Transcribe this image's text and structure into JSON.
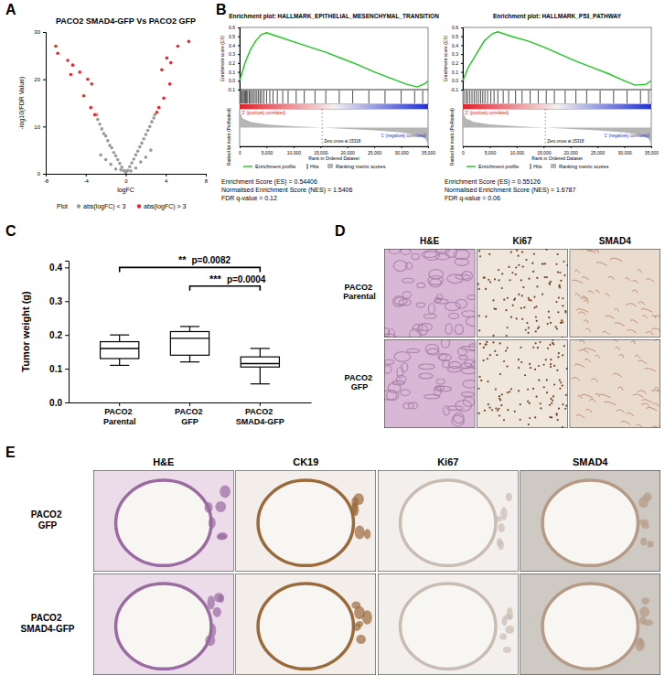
{
  "panel_labels": [
    "A",
    "B",
    "C",
    "D",
    "E"
  ],
  "chart_data": [
    {
      "type": "scatter",
      "title": "PACO2 SMAD4-GFP Vs PACO2 GFP",
      "x_label": "logFC",
      "y_label": "-log10(FDR Value)",
      "legend_title": "Plot",
      "xlim": [
        -8,
        8
      ],
      "xticks": [
        -8,
        -4,
        0,
        4,
        8
      ],
      "ylim": [
        0,
        30
      ],
      "yticks": [
        0,
        10,
        20,
        30
      ],
      "series": [
        {
          "name": "abs(logFC) < 3",
          "color": "#9a9a9a",
          "x": [
            -2.9,
            -2.8,
            -2.6,
            -2.4,
            -2.2,
            -2.0,
            -1.8,
            -1.6,
            -1.4,
            -1.2,
            -1.0,
            -0.8,
            -0.6,
            -0.4,
            -0.2,
            0,
            0.2,
            0.4,
            0.6,
            0.8,
            1.0,
            1.2,
            1.4,
            1.6,
            1.8,
            2.0,
            2.2,
            2.4,
            2.6,
            2.8,
            2.9,
            -2.5,
            -2.0,
            -1.5,
            -1.0,
            -0.5,
            0,
            0.5,
            1.0,
            1.5,
            2.0,
            2.5
          ],
          "values": [
            12.5,
            11.5,
            10.5,
            9.5,
            8.5,
            8,
            7,
            6,
            5.5,
            4.5,
            3.8,
            3,
            2.2,
            1.4,
            0.7,
            0.1,
            0.7,
            1.5,
            2.3,
            3.1,
            4,
            4.8,
            5.7,
            6.5,
            7.4,
            8.3,
            9.2,
            10,
            11,
            11.8,
            12.5,
            4,
            3,
            2,
            1,
            0.8,
            0.5,
            0.6,
            1.2,
            2.5,
            3.5,
            5
          ]
        },
        {
          "name": "abs(logFC) > 3",
          "color": "#e8292f",
          "x": [
            -7.0,
            -6.8,
            -5.8,
            -5.5,
            -5.3,
            -4.6,
            -4.2,
            -3.8,
            -3.5,
            -3.4,
            -3.1,
            3.1,
            3.3,
            3.6,
            3.8,
            4.1,
            4.4,
            4.5,
            5.2,
            6.3
          ],
          "values": [
            27,
            25.5,
            24,
            21,
            23,
            21.5,
            16.5,
            20,
            14,
            19,
            12.5,
            13,
            14,
            22,
            16,
            24.5,
            19,
            23.5,
            27,
            28
          ]
        }
      ]
    },
    {
      "type": "gsea",
      "title": "Enrichment plot: HALLMARK_EPITHELIAL_MESENCHYMAL_TRANSITION",
      "y_label": "Enrichment score (ES)",
      "x_label": "Rank in Ordered Dataset",
      "metric_label": "Ranked list metric (PreRanked)",
      "xlim": [
        0,
        35000
      ],
      "xticks": [
        0,
        {
          "value": 5000,
          "label": "5,000"
        },
        {
          "value": 10000,
          "label": "10,000"
        },
        {
          "value": 15000,
          "label": "15,000"
        },
        {
          "value": 20000,
          "label": "20,000"
        },
        {
          "value": 25000,
          "label": "25,000"
        },
        {
          "value": 30000,
          "label": "30,000"
        },
        {
          "value": 35000,
          "label": "35,000"
        }
      ],
      "ylim": [
        -0.1,
        0.6
      ],
      "yticks": [
        -0.1,
        {
          "value": 0,
          "label": "0.0"
        },
        0.1,
        0.2,
        0.3,
        0.4,
        0.5,
        0.6
      ],
      "series": [
        {
          "name": "Enrichment profile",
          "color": "#22c322",
          "x": [
            0,
            1000,
            2000,
            3000,
            4000,
            5000,
            7000,
            10000,
            13000,
            16000,
            19000,
            22000,
            25000,
            28000,
            31000,
            33000,
            34500,
            35000
          ],
          "values": [
            0,
            0.2,
            0.35,
            0.45,
            0.52,
            0.54,
            0.5,
            0.44,
            0.38,
            0.32,
            0.25,
            0.18,
            0.1,
            0.03,
            -0.04,
            -0.07,
            -0.03,
            0
          ]
        }
      ],
      "hits": {
        "name": "Hits",
        "x": [
          150,
          300,
          500,
          700,
          900,
          1100,
          1300,
          1500,
          1800,
          2000,
          2300,
          2600,
          2900,
          3200,
          3500,
          3800,
          4100,
          4500,
          5000,
          5600,
          6200,
          7000,
          8000,
          9000,
          10500,
          12000,
          14000,
          16000,
          18500,
          21000,
          24000,
          27000,
          30000,
          32500,
          34000
        ]
      },
      "metric": {
        "name": "Ranking metric scores",
        "ylim": [
          -2,
          2
        ],
        "x": [
          0,
          500,
          2000,
          5000,
          10000,
          15318,
          20000,
          25000,
          30000,
          33000,
          34500,
          35000
        ],
        "values": [
          1.8,
          1.0,
          0.6,
          0.35,
          0.15,
          0,
          -0.15,
          -0.3,
          -0.5,
          -0.8,
          -1.2,
          -1.8
        ]
      },
      "zero_cross": {
        "value": 15318,
        "label": "Zero cross at 15318"
      },
      "annotations": [
        "'2' (positively correlated)",
        "'1' (negatively correlated)"
      ],
      "stats": [
        "Enrichment Score (ES) = 0.54406",
        "Normalised Enrichment Score (NES) = 1.5406",
        "FDR q-value = 0.12"
      ]
    },
    {
      "type": "gsea",
      "title": "Enrichment plot: HALLMARK_P53_PATHWAY",
      "y_label": "Enrichment score (ES)",
      "x_label": "Rank in Ordered Dataset",
      "metric_label": "Ranked list metric (PreRanked)",
      "xlim": [
        0,
        35000
      ],
      "xticks": [
        0,
        {
          "value": 5000,
          "label": "5,000"
        },
        {
          "value": 10000,
          "label": "10,000"
        },
        {
          "value": 15000,
          "label": "15,000"
        },
        {
          "value": 20000,
          "label": "20,000"
        },
        {
          "value": 25000,
          "label": "25,000"
        },
        {
          "value": 30000,
          "label": "30,000"
        },
        {
          "value": 35000,
          "label": "35,000"
        }
      ],
      "ylim": [
        -0.1,
        0.6
      ],
      "yticks": [
        -0.1,
        {
          "value": 0,
          "label": "0.0"
        },
        0.1,
        0.2,
        0.3,
        0.4,
        0.5,
        0.6
      ],
      "series": [
        {
          "name": "Enrichment profile",
          "color": "#22c322",
          "x": [
            0,
            1000,
            2500,
            4000,
            5500,
            6500,
            9000,
            12000,
            15000,
            18000,
            21000,
            24000,
            27000,
            30000,
            32000,
            34000,
            35000
          ],
          "values": [
            0,
            0.15,
            0.3,
            0.45,
            0.53,
            0.55,
            0.5,
            0.45,
            0.38,
            0.3,
            0.22,
            0.15,
            0.08,
            0.0,
            -0.05,
            -0.04,
            0
          ]
        }
      ],
      "hits": {
        "name": "Hits",
        "x": [
          200,
          600,
          900,
          1300,
          1700,
          2100,
          2500,
          2900,
          3300,
          3700,
          4100,
          4600,
          5200,
          5800,
          6500,
          7500,
          8500,
          9800,
          11000,
          12500,
          14000,
          15500,
          17000,
          19000,
          21000,
          23000,
          25500,
          28000,
          30500,
          33000,
          34500
        ]
      },
      "metric": {
        "name": "Ranking metric scores",
        "ylim": [
          -2,
          2
        ],
        "x": [
          0,
          500,
          2000,
          5000,
          10000,
          15318,
          20000,
          25000,
          30000,
          33000,
          34500,
          35000
        ],
        "values": [
          1.8,
          1.0,
          0.6,
          0.35,
          0.15,
          0,
          -0.15,
          -0.3,
          -0.5,
          -0.8,
          -1.2,
          -1.8
        ]
      },
      "zero_cross": {
        "value": 15318,
        "label": "Zero cross at 15318"
      },
      "annotations": [
        "'2' (positively correlated)",
        "'1' (negatively correlated)"
      ],
      "stats": [
        "Enrichment Score (ES) = 0.55126",
        "Normalised Enrichment Score (NES) = 1.6787",
        "FDR q-value = 0.06"
      ]
    },
    {
      "type": "box",
      "y_label": "Tumor weight (g)",
      "categories": [
        "PACO2 Parental",
        "PACO2 GFP",
        "PACO2 SMAD4-GFP"
      ],
      "min": [
        0.11,
        0.12,
        0.055
      ],
      "q1": [
        0.13,
        0.14,
        0.105
      ],
      "median": [
        0.16,
        0.19,
        0.115
      ],
      "q3": [
        0.18,
        0.21,
        0.135
      ],
      "max": [
        0.2,
        0.225,
        0.16
      ],
      "ylim": [
        0,
        0.42
      ],
      "yticks": [
        {
          "value": 0,
          "label": "0.0"
        },
        0.1,
        0.2,
        0.3,
        0.4
      ],
      "annotations": [
        {
          "stars": "**",
          "label": "p=0.0082",
          "from": 0,
          "to": 2,
          "y": 0.4
        },
        {
          "stars": "***",
          "label": "p=0.0004",
          "from": 1,
          "to": 2,
          "y": 0.345
        }
      ]
    }
  ],
  "image_panels": [
    {
      "columns": [
        "H&E",
        "Ki67",
        "SMAD4"
      ],
      "rows": [
        "PACO2 Parental",
        "PACO2 GFP"
      ]
    },
    {
      "columns": [
        "H&E",
        "CK19",
        "Ki67",
        "SMAD4"
      ],
      "rows": [
        "PACO2 GFP",
        "PACO2 SMAD4-GFP"
      ]
    }
  ]
}
